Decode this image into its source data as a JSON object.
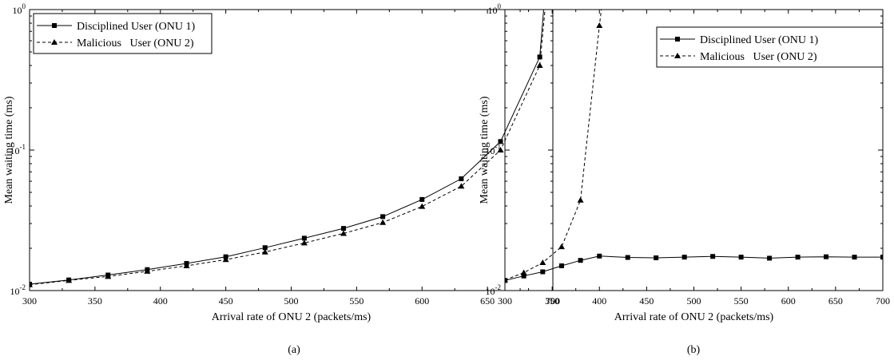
{
  "chart_data": [
    {
      "type": "line",
      "caption": "(a)",
      "xlabel": "Arrival rate of ONU 2 (packets/ms)",
      "ylabel": "Mean waiting time (ms)",
      "xlim": [
        300,
        700
      ],
      "ylim": [
        0.01,
        1
      ],
      "yscale": "log",
      "xticks": [
        300,
        350,
        400,
        450,
        500,
        550,
        600,
        650,
        700
      ],
      "yticks": [
        {
          "value": 0.01,
          "base": "10",
          "exp": "-2"
        },
        {
          "value": 0.1,
          "base": "10",
          "exp": "-1"
        },
        {
          "value": 1,
          "base": "10",
          "exp": "0"
        }
      ],
      "legend_position": "top-left",
      "series": [
        {
          "name": "Disciplined User (ONU 1)",
          "marker": "square",
          "line": "solid",
          "x": [
            300,
            330,
            360,
            390,
            420,
            450,
            480,
            510,
            540,
            570,
            600,
            630,
            660,
            690,
            693
          ],
          "y": [
            0.0111,
            0.0119,
            0.0129,
            0.0141,
            0.0156,
            0.0174,
            0.0202,
            0.0236,
            0.0277,
            0.0336,
            0.0445,
            0.0625,
            0.115,
            0.46,
            1.0
          ],
          "marker_indices": [
            0,
            1,
            2,
            3,
            4,
            5,
            6,
            7,
            8,
            9,
            10,
            11,
            12,
            13
          ]
        },
        {
          "name": "Malicious   User (ONU 2)",
          "marker": "triangle",
          "line": "dashed",
          "x": [
            300,
            330,
            360,
            390,
            420,
            450,
            480,
            510,
            540,
            570,
            600,
            630,
            660,
            690,
            694
          ],
          "y": [
            0.011,
            0.0118,
            0.0126,
            0.0137,
            0.015,
            0.0166,
            0.0188,
            0.0218,
            0.0255,
            0.0305,
            0.0397,
            0.0553,
            0.1,
            0.4,
            1.0
          ],
          "marker_indices": [
            0,
            1,
            2,
            3,
            4,
            5,
            6,
            7,
            8,
            9,
            10,
            11,
            12,
            13
          ]
        }
      ]
    },
    {
      "type": "line",
      "caption": "(b)",
      "xlabel": "Arrival rate of ONU 2 (packets/ms)",
      "ylabel": "Mean waiting time (ms)",
      "xlim": [
        300,
        700
      ],
      "ylim": [
        0.01,
        1
      ],
      "yscale": "log",
      "xticks": [
        300,
        350,
        400,
        450,
        500,
        550,
        600,
        650,
        700
      ],
      "yticks": [
        {
          "value": 0.01,
          "base": "10",
          "exp": "-2"
        },
        {
          "value": 0.1,
          "base": "10",
          "exp": "-1"
        },
        {
          "value": 1,
          "base": "10",
          "exp": "0"
        }
      ],
      "legend_position": "top-right",
      "series": [
        {
          "name": "Disciplined User (ONU 1)",
          "marker": "square",
          "line": "solid",
          "x": [
            300,
            320,
            340,
            360,
            380,
            400,
            430,
            460,
            490,
            520,
            550,
            580,
            610,
            640,
            670,
            700
          ],
          "y": [
            0.0118,
            0.0127,
            0.0136,
            0.015,
            0.0164,
            0.0176,
            0.0172,
            0.0171,
            0.0173,
            0.0175,
            0.0173,
            0.017,
            0.0173,
            0.0174,
            0.0173,
            0.0173
          ],
          "marker_indices": [
            0,
            1,
            2,
            3,
            4,
            5,
            6,
            7,
            8,
            9,
            10,
            11,
            12,
            13,
            14,
            15
          ]
        },
        {
          "name": "Malicious   User (ONU 2)",
          "marker": "triangle",
          "line": "dashed",
          "x": [
            300,
            320,
            340,
            360,
            380,
            400,
            402
          ],
          "y": [
            0.0119,
            0.0134,
            0.0158,
            0.0205,
            0.044,
            0.77,
            1.0
          ],
          "marker_indices": [
            0,
            1,
            2,
            3,
            4,
            5
          ]
        }
      ]
    }
  ]
}
